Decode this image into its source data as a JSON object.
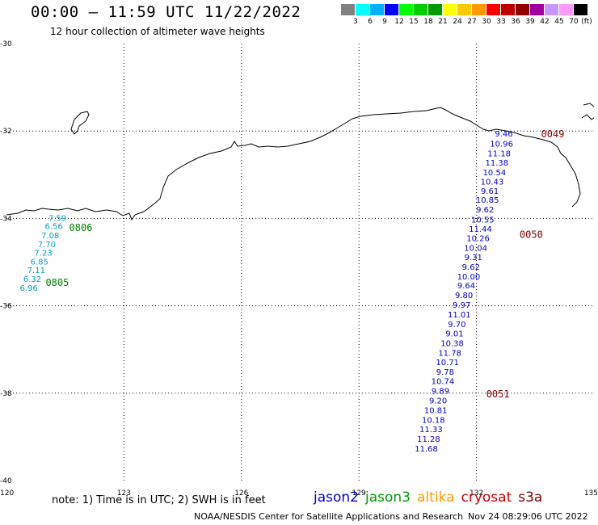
{
  "header": {
    "title": "00:00 – 11:59 UTC 11/22/2022",
    "subtitle": "12 hour collection of altimeter wave heights"
  },
  "colorbar": {
    "unit_label": "(ft)",
    "ticks": [
      "3",
      "6",
      "9",
      "12",
      "15",
      "18",
      "21",
      "24",
      "27",
      "30",
      "33",
      "36",
      "39",
      "42",
      "45",
      "70"
    ],
    "colors": [
      "#808080",
      "#00ffff",
      "#00b0ff",
      "#0000ff",
      "#00ff00",
      "#00cc00",
      "#009900",
      "#ffff00",
      "#ffc800",
      "#ff9900",
      "#ff0000",
      "#c00000",
      "#900000",
      "#a000a0",
      "#c896ff",
      "#ff99ff",
      "#000000"
    ]
  },
  "map": {
    "lon_range": [
      120,
      135
    ],
    "lat_range": [
      -40,
      -30
    ],
    "lon_ticks": [
      "120",
      "123",
      "126",
      "129",
      "132",
      "135"
    ],
    "lat_ticks": [
      "-30",
      "-32",
      "-34",
      "-36",
      "-38",
      "-40"
    ],
    "gridlines": true
  },
  "tracks": [
    {
      "satellite": "jason3",
      "color": "#00a0c8",
      "label_color": "#008000",
      "times": [
        {
          "label": "0806",
          "lat": -34.2,
          "lon": 121.6
        },
        {
          "label": "0805",
          "lat": -35.45,
          "lon": 121.0
        }
      ],
      "points": [
        {
          "lat": -33.98,
          "lon": 121.3,
          "swh": "7.59"
        },
        {
          "lat": -34.17,
          "lon": 121.21,
          "swh": "6.56"
        },
        {
          "lat": -34.38,
          "lon": 121.12,
          "swh": "7.08"
        },
        {
          "lat": -34.58,
          "lon": 121.03,
          "swh": "7.70"
        },
        {
          "lat": -34.78,
          "lon": 120.94,
          "swh": "7.23"
        },
        {
          "lat": -34.98,
          "lon": 120.84,
          "swh": "6.85"
        },
        {
          "lat": -35.18,
          "lon": 120.76,
          "swh": "7.11"
        },
        {
          "lat": -35.38,
          "lon": 120.66,
          "swh": "6.32"
        },
        {
          "lat": -35.58,
          "lon": 120.57,
          "swh": "6.96"
        }
      ]
    },
    {
      "satellite": "jason2",
      "color": "#0000c0",
      "label_color": "#800000",
      "times": [
        {
          "label": "0049",
          "lat": -32.05,
          "lon": 133.65
        },
        {
          "label": "0050",
          "lat": -34.35,
          "lon": 133.1
        },
        {
          "label": "0051",
          "lat": -38.0,
          "lon": 132.25
        }
      ],
      "points": [
        {
          "lat": -32.05,
          "lon": 132.7,
          "swh": "9.46"
        },
        {
          "lat": -32.28,
          "lon": 132.64,
          "swh": "10.96"
        },
        {
          "lat": -32.5,
          "lon": 132.58,
          "swh": "11.18"
        },
        {
          "lat": -32.72,
          "lon": 132.52,
          "swh": "11.38"
        },
        {
          "lat": -32.94,
          "lon": 132.46,
          "swh": "10.54"
        },
        {
          "lat": -33.15,
          "lon": 132.4,
          "swh": "10.43"
        },
        {
          "lat": -33.36,
          "lon": 132.34,
          "swh": "9.61"
        },
        {
          "lat": -33.57,
          "lon": 132.28,
          "swh": "10.85"
        },
        {
          "lat": -33.79,
          "lon": 132.22,
          "swh": "9.62"
        },
        {
          "lat": -34.02,
          "lon": 132.16,
          "swh": "10.55"
        },
        {
          "lat": -34.23,
          "lon": 132.1,
          "swh": "11.44"
        },
        {
          "lat": -34.45,
          "lon": 132.04,
          "swh": "10.26"
        },
        {
          "lat": -34.67,
          "lon": 131.98,
          "swh": "10.04"
        },
        {
          "lat": -34.88,
          "lon": 131.92,
          "swh": "9.31"
        },
        {
          "lat": -35.1,
          "lon": 131.86,
          "swh": "9.62"
        },
        {
          "lat": -35.32,
          "lon": 131.8,
          "swh": "10.00"
        },
        {
          "lat": -35.53,
          "lon": 131.74,
          "swh": "9.64"
        },
        {
          "lat": -35.75,
          "lon": 131.68,
          "swh": "9.80"
        },
        {
          "lat": -35.97,
          "lon": 131.62,
          "swh": "9.97"
        },
        {
          "lat": -36.19,
          "lon": 131.56,
          "swh": "11.01"
        },
        {
          "lat": -36.41,
          "lon": 131.5,
          "swh": "9.70"
        },
        {
          "lat": -36.63,
          "lon": 131.44,
          "swh": "9.01"
        },
        {
          "lat": -36.85,
          "lon": 131.38,
          "swh": "10.38"
        },
        {
          "lat": -37.07,
          "lon": 131.32,
          "swh": "11.78"
        },
        {
          "lat": -37.28,
          "lon": 131.26,
          "swh": "10.71"
        },
        {
          "lat": -37.5,
          "lon": 131.2,
          "swh": "9.78"
        },
        {
          "lat": -37.72,
          "lon": 131.14,
          "swh": "10.74"
        },
        {
          "lat": -37.94,
          "lon": 131.08,
          "swh": "9.89"
        },
        {
          "lat": -38.16,
          "lon": 131.02,
          "swh": "9.20"
        },
        {
          "lat": -38.38,
          "lon": 130.96,
          "swh": "10.81"
        },
        {
          "lat": -38.6,
          "lon": 130.9,
          "swh": "10.18"
        },
        {
          "lat": -38.82,
          "lon": 130.84,
          "swh": "11.33"
        },
        {
          "lat": -39.04,
          "lon": 130.78,
          "swh": "11.28"
        },
        {
          "lat": -39.26,
          "lon": 130.72,
          "swh": "11.68"
        }
      ]
    }
  ],
  "note": "note:  1) Time is in UTC;  2) SWH is in feet",
  "legend": [
    {
      "name": "jason2",
      "color": "#0000cc"
    },
    {
      "name": "jason3",
      "color": "#009900"
    },
    {
      "name": "altika",
      "color": "#ff9900"
    },
    {
      "name": "cryosat",
      "color": "#cc0000"
    },
    {
      "name": "s3a",
      "color": "#800000"
    }
  ],
  "footer": {
    "credit": "NOAA/NESDIS Center for Satellite Applications and Research",
    "timestamp": "Nov 24 08:29:06 UTC 2022"
  }
}
